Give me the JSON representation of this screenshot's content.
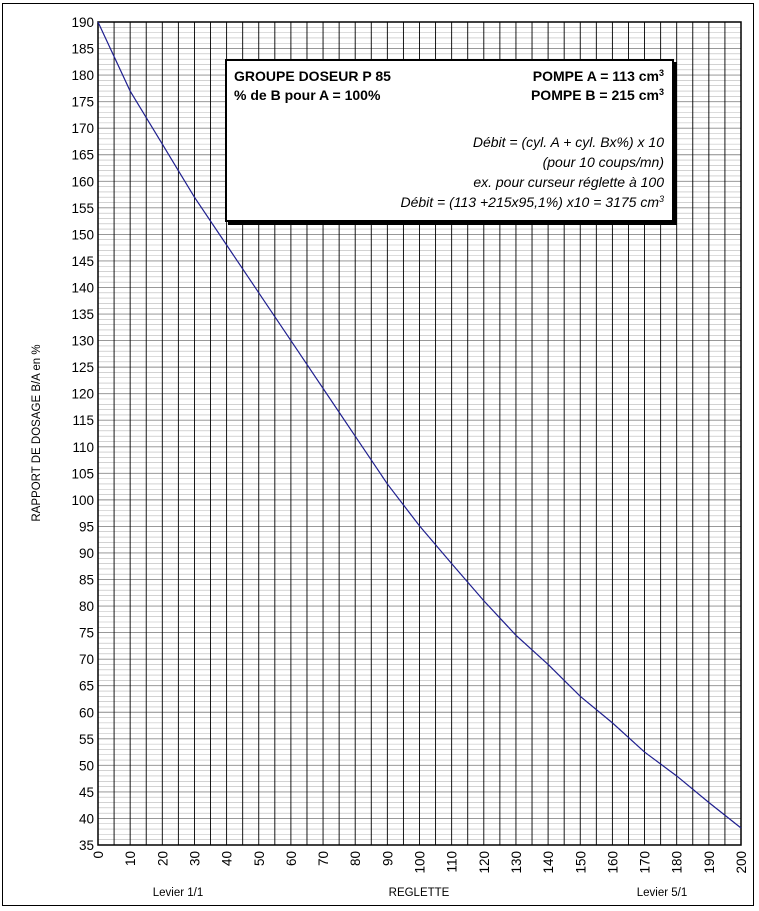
{
  "chart_data": {
    "type": "line",
    "title": "",
    "xlabel": "REGLETTE",
    "ylabel": "RAPPORT DE DOSAGE B/A en %",
    "xlim": [
      0,
      200
    ],
    "ylim": [
      35,
      190
    ],
    "x_ticks": [
      0,
      10,
      20,
      30,
      40,
      50,
      60,
      70,
      80,
      90,
      100,
      110,
      120,
      130,
      140,
      150,
      160,
      170,
      180,
      190,
      200
    ],
    "y_ticks": [
      35,
      40,
      45,
      50,
      55,
      60,
      65,
      70,
      75,
      80,
      85,
      90,
      95,
      100,
      105,
      110,
      115,
      120,
      125,
      130,
      135,
      140,
      145,
      150,
      155,
      160,
      165,
      170,
      175,
      180,
      185,
      190
    ],
    "grid": true,
    "line_color": "#1f1f8f",
    "series": [
      {
        "x": [
          0,
          10,
          20,
          25,
          30,
          40,
          50,
          60,
          70,
          80,
          90,
          100,
          110,
          120,
          130,
          140,
          150,
          160,
          170,
          180,
          190,
          200
        ],
        "values": [
          190,
          177,
          167,
          162,
          157,
          148,
          139,
          130,
          121,
          112,
          103,
          95.1,
          88,
          81,
          74.5,
          69,
          63,
          58,
          52.5,
          48,
          43,
          38.2
        ]
      }
    ],
    "annotations": {
      "left": "Levier 1/1",
      "right": "Levier 5/1"
    }
  },
  "info_box": {
    "group_title": "GROUPE DOSEUR P 85",
    "pump_a": "POMPE A = 113 cm",
    "pump_a_exp": "3",
    "ratio_line": "% de B pour A = 100%",
    "pump_b": "POMPE B = 215 cm",
    "pump_b_exp": "3",
    "formula": "Débit = (cyl. A + cyl. Bx%) x 10",
    "formula_note": "(pour 10 coups/mn)",
    "example": "ex. pour curseur réglette à 100",
    "example_calc": "Débit = (113 +215x95,1%) x10 = 3175 cm",
    "example_calc_exp": "3"
  }
}
